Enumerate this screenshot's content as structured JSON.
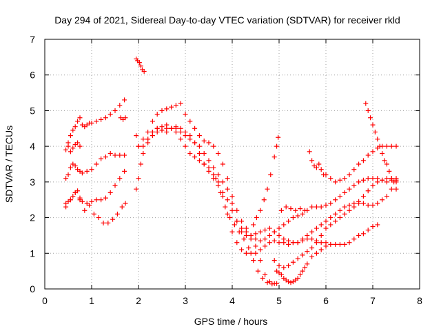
{
  "chart_data": {
    "type": "scatter",
    "title": "Day 294 of 2021, Sidereal Day-to-day VTEC variation (SDTVAR) for receiver rkld",
    "xlabel": "GPS time / hours",
    "ylabel": "SDTVAR / TECUs",
    "xlim": [
      0,
      8
    ],
    "ylim": [
      0,
      7
    ],
    "xticks": [
      "0",
      "1",
      "2",
      "3",
      "4",
      "5",
      "6",
      "7",
      "8"
    ],
    "yticks": [
      "0",
      "1",
      "2",
      "3",
      "4",
      "5",
      "6",
      "7"
    ],
    "grid": true,
    "marker": "plus",
    "color": "#ff0000",
    "series": [
      {
        "x": [
          0.45,
          0.5,
          0.55,
          0.6,
          0.65,
          0.7,
          0.75,
          0.8,
          0.85,
          0.9,
          0.95,
          1.0,
          1.1,
          1.2,
          1.3,
          1.4,
          1.5,
          1.6,
          1.7
        ],
        "y": [
          3.9,
          4.1,
          4.3,
          4.45,
          4.55,
          4.7,
          4.8,
          4.6,
          4.55,
          4.6,
          4.65,
          4.65,
          4.7,
          4.75,
          4.8,
          4.9,
          5.0,
          5.15,
          5.3
        ]
      },
      {
        "x": [
          0.45,
          0.5,
          0.55,
          0.6,
          0.65,
          0.7,
          0.75,
          0.8,
          0.9,
          1.0,
          1.1,
          1.2,
          1.3,
          1.4,
          1.5,
          1.6,
          1.7
        ],
        "y": [
          3.1,
          3.2,
          3.4,
          3.5,
          3.45,
          3.35,
          3.3,
          3.25,
          3.3,
          3.35,
          3.5,
          3.65,
          3.7,
          3.8,
          3.75,
          3.75,
          3.75
        ]
      },
      {
        "x": [
          0.45,
          0.5,
          0.55,
          0.6,
          0.65,
          0.7,
          0.75,
          0.8,
          0.9,
          1.0,
          1.1,
          1.2,
          1.3,
          1.4,
          1.5,
          1.6,
          1.7
        ],
        "y": [
          2.3,
          2.45,
          2.5,
          2.6,
          2.7,
          2.75,
          2.55,
          2.45,
          2.4,
          2.45,
          2.5,
          2.5,
          2.55,
          2.7,
          2.9,
          3.1,
          3.3
        ]
      },
      {
        "x": [
          0.45,
          0.55,
          0.65,
          0.75,
          0.85,
          0.95,
          1.05,
          1.15,
          1.25,
          1.35,
          1.45,
          1.55,
          1.65,
          1.72
        ],
        "y": [
          2.4,
          2.5,
          2.7,
          2.5,
          2.2,
          2.35,
          2.1,
          2.0,
          1.85,
          1.85,
          1.95,
          2.1,
          2.3,
          2.4
        ]
      },
      {
        "x": [
          0.5,
          0.55,
          0.6,
          0.65,
          0.7,
          0.75
        ],
        "y": [
          4.0,
          3.85,
          3.95,
          4.05,
          4.1,
          4.0
        ]
      },
      {
        "x": [
          1.62,
          1.67,
          1.72
        ],
        "y": [
          4.8,
          4.75,
          4.8
        ]
      },
      {
        "x": [
          1.95,
          1.98,
          2.02,
          2.05,
          2.08,
          2.12
        ],
        "y": [
          6.45,
          6.4,
          6.35,
          6.25,
          6.15,
          6.1
        ]
      },
      {
        "x": [
          1.95,
          2.0,
          2.05,
          2.1,
          2.2,
          2.3,
          2.4,
          2.5,
          2.6,
          2.7,
          2.8,
          2.9,
          3.0,
          3.1,
          3.2,
          3.3,
          3.4,
          3.5,
          3.6,
          3.7,
          3.8,
          3.9,
          4.0,
          4.1,
          4.2,
          4.3,
          4.4,
          4.5,
          4.6,
          4.7,
          4.8,
          4.9,
          5.0,
          5.1,
          5.2,
          5.3,
          5.4,
          5.5,
          5.6,
          5.7,
          5.8,
          5.9,
          6.0,
          6.1,
          6.2,
          6.3,
          6.4,
          6.5,
          6.6,
          6.7,
          6.8,
          6.9,
          7.0,
          7.1
        ],
        "y": [
          2.8,
          3.1,
          3.5,
          3.8,
          4.2,
          4.4,
          4.5,
          4.55,
          4.6,
          4.5,
          4.4,
          4.2,
          4.0,
          3.8,
          3.7,
          3.6,
          3.5,
          3.4,
          3.2,
          3.0,
          2.6,
          2.1,
          1.6,
          1.3,
          1.1,
          1.0,
          1.0,
          1.0,
          1.1,
          1.2,
          1.3,
          1.35,
          1.3,
          1.3,
          1.25,
          1.3,
          1.3,
          1.35,
          1.4,
          1.4,
          1.35,
          1.3,
          1.3,
          1.25,
          1.25,
          1.25,
          1.25,
          1.3,
          1.4,
          1.5,
          1.55,
          1.65,
          1.75,
          1.8
        ]
      },
      {
        "x": [
          1.95,
          2.0,
          2.1,
          2.2,
          2.3,
          2.4,
          2.5,
          2.6,
          2.7,
          2.8,
          2.9,
          3.0,
          3.1,
          3.2,
          3.3,
          3.4,
          3.5,
          3.6,
          3.7,
          3.8,
          3.9,
          4.0,
          4.1,
          4.2,
          4.3,
          4.4,
          4.5,
          4.6,
          4.7,
          4.8,
          4.9,
          5.0,
          5.1,
          5.2,
          5.3,
          5.4,
          5.5,
          5.6,
          5.7,
          5.8,
          5.9,
          6.0,
          6.1,
          6.2,
          6.3,
          6.4,
          6.5,
          6.6,
          6.7,
          6.8,
          6.9,
          7.0,
          7.1,
          7.2,
          7.3,
          7.4,
          7.5
        ],
        "y": [
          4.3,
          4.0,
          4.0,
          4.1,
          4.3,
          4.4,
          4.45,
          4.5,
          4.5,
          4.5,
          4.4,
          4.3,
          4.2,
          4.1,
          4.0,
          3.8,
          3.6,
          3.4,
          3.2,
          3.0,
          2.8,
          2.4,
          1.9,
          1.6,
          1.5,
          1.5,
          1.55,
          1.6,
          1.65,
          1.7,
          1.6,
          1.5,
          1.4,
          1.35,
          1.3,
          1.3,
          1.4,
          1.5,
          1.6,
          1.7,
          1.8,
          1.9,
          2.0,
          2.1,
          2.2,
          2.3,
          2.35,
          2.4,
          2.4,
          2.4,
          2.35,
          2.35,
          2.4,
          2.5,
          2.6,
          2.8,
          3.0
        ]
      },
      {
        "x": [
          2.0,
          2.1,
          2.2,
          2.3,
          2.4,
          2.5,
          2.6,
          2.7,
          2.8,
          2.9,
          3.0,
          3.1,
          3.2,
          3.3,
          3.4,
          3.5,
          3.6,
          3.7,
          3.8,
          3.9,
          4.0,
          4.1,
          4.2,
          4.3,
          4.4,
          4.5,
          4.6,
          4.7,
          4.8,
          4.9,
          5.0,
          5.1,
          5.2,
          5.3,
          5.4,
          5.5,
          5.6,
          5.7,
          5.8,
          5.9,
          6.0,
          6.1,
          6.2,
          6.3,
          6.4,
          6.5,
          6.6,
          6.7,
          6.8,
          6.9,
          7.0,
          7.1,
          7.2,
          7.3,
          7.4,
          7.5
        ],
        "y": [
          4.0,
          4.2,
          4.4,
          4.7,
          4.9,
          5.0,
          5.05,
          5.1,
          5.15,
          5.2,
          4.9,
          4.7,
          4.5,
          4.3,
          4.15,
          4.1,
          4.0,
          3.8,
          3.5,
          3.1,
          2.6,
          2.2,
          1.9,
          1.7,
          1.5,
          1.4,
          1.35,
          1.4,
          1.5,
          1.6,
          1.7,
          1.8,
          1.9,
          2.0,
          2.05,
          2.1,
          2.2,
          2.3,
          2.3,
          2.3,
          2.35,
          2.4,
          2.5,
          2.6,
          2.7,
          2.8,
          2.9,
          3.0,
          3.05,
          3.1,
          3.1,
          3.1,
          3.05,
          3.0,
          3.05,
          3.1
        ]
      },
      {
        "x": [
          2.2,
          2.3,
          2.4,
          2.5,
          2.6,
          2.7,
          2.8,
          2.9,
          3.0,
          3.1,
          3.2,
          3.3,
          3.4,
          3.5,
          3.6,
          3.7,
          3.8,
          3.9,
          4.0,
          4.1,
          4.2,
          4.3,
          4.4,
          4.5,
          4.6,
          4.7,
          4.8,
          4.9
        ],
        "y": [
          4.2,
          4.4,
          4.5,
          4.45,
          4.4,
          4.5,
          4.55,
          4.5,
          4.4,
          4.3,
          4.1,
          3.8,
          3.5,
          3.3,
          3.1,
          2.9,
          2.7,
          2.5,
          2.2,
          1.9,
          1.7,
          1.6,
          1.4,
          1.2,
          0.8,
          0.4,
          0.2,
          0.15
        ]
      },
      {
        "x": [
          3.65,
          3.75,
          3.85,
          3.95,
          4.05,
          4.15,
          4.25,
          4.35,
          4.45,
          4.55,
          4.65,
          4.75,
          4.85,
          4.95
        ],
        "y": [
          3.1,
          2.7,
          2.3,
          2.0,
          1.8,
          1.6,
          1.4,
          1.15,
          0.8,
          0.5,
          0.3,
          0.18,
          0.14,
          0.15
        ]
      },
      {
        "x": [
          4.45,
          4.52,
          4.6,
          4.68,
          4.75,
          4.82,
          4.9,
          4.95,
          4.98
        ],
        "y": [
          1.8,
          2.0,
          2.2,
          2.5,
          2.8,
          3.2,
          3.7,
          4.0,
          4.25
        ]
      },
      {
        "x": [
          4.95,
          5.0,
          5.05,
          5.1,
          5.15,
          5.2,
          5.25,
          5.3,
          5.35,
          5.4,
          5.45,
          5.5,
          5.55,
          5.6,
          5.7,
          5.8,
          5.9,
          6.0
        ],
        "y": [
          0.5,
          0.45,
          0.4,
          0.3,
          0.25,
          0.2,
          0.18,
          0.2,
          0.25,
          0.3,
          0.4,
          0.5,
          0.6,
          0.7,
          0.9,
          1.0,
          1.1,
          1.2
        ]
      },
      {
        "x": [
          4.9,
          5.0,
          5.1,
          5.2,
          5.3,
          5.4,
          5.5,
          5.6,
          5.7,
          5.8,
          5.9,
          6.0,
          6.1,
          6.2,
          6.3,
          6.4,
          6.5,
          6.6,
          6.7,
          6.8,
          6.9,
          7.0,
          7.1,
          7.2,
          7.3,
          7.4,
          7.5
        ],
        "y": [
          0.8,
          0.65,
          0.6,
          0.65,
          0.75,
          0.85,
          0.95,
          1.05,
          1.15,
          1.3,
          1.5,
          1.7,
          1.8,
          1.9,
          2.0,
          2.1,
          2.2,
          2.3,
          2.45,
          2.6,
          2.75,
          2.9,
          3.0,
          3.05,
          3.1,
          3.1,
          3.05
        ]
      },
      {
        "x": [
          5.05,
          5.15,
          5.25,
          5.35,
          5.45,
          5.55
        ],
        "y": [
          2.2,
          2.3,
          2.25,
          2.2,
          2.25,
          2.2
        ]
      },
      {
        "x": [
          5.65,
          5.7,
          5.75,
          5.8,
          5.85,
          5.9,
          5.95,
          6.0,
          6.1,
          6.2,
          6.3,
          6.4,
          6.5,
          6.6,
          6.7,
          6.8,
          6.9,
          7.0,
          7.1,
          7.2,
          7.3,
          7.4,
          7.5
        ],
        "y": [
          3.85,
          3.6,
          3.45,
          3.4,
          3.5,
          3.35,
          3.2,
          3.2,
          3.1,
          3.0,
          3.05,
          3.1,
          3.2,
          3.35,
          3.5,
          3.6,
          3.75,
          3.85,
          3.95,
          4.0,
          4.0,
          4.0,
          4.0
        ]
      },
      {
        "x": [
          6.85,
          6.9,
          6.95,
          7.0,
          7.05,
          7.1,
          7.15,
          7.2,
          7.25,
          7.3,
          7.35,
          7.4,
          7.45,
          7.5
        ],
        "y": [
          5.2,
          5.0,
          4.8,
          4.6,
          4.4,
          4.2,
          4.0,
          3.8,
          3.6,
          3.5,
          3.3,
          3.1,
          3.0,
          2.8
        ]
      }
    ]
  }
}
